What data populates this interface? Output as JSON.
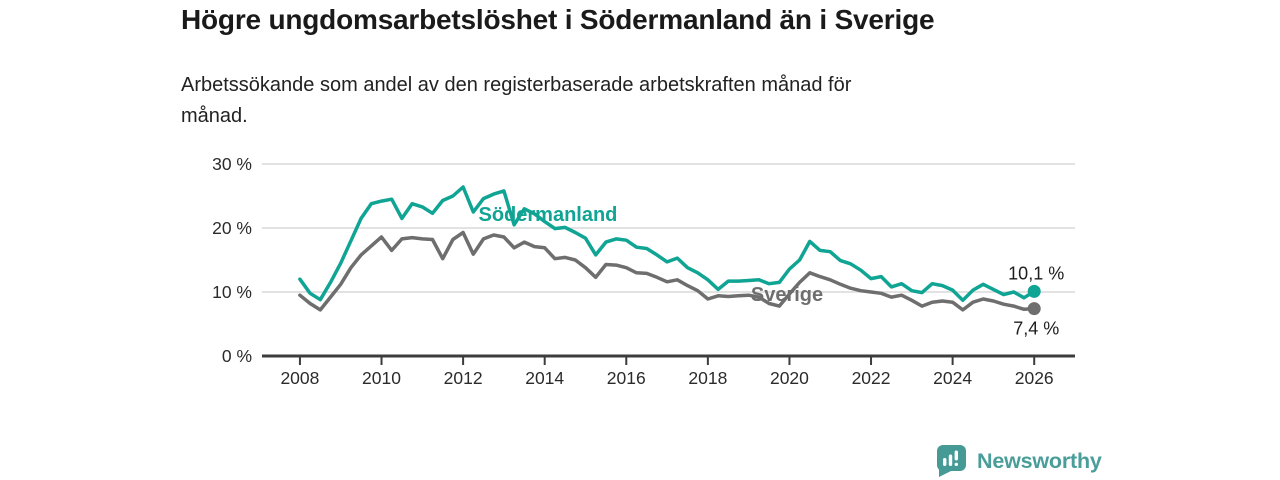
{
  "header": {
    "title": "Högre ungdomsarbetslöshet i Södermanland än i Sverige",
    "subtitle": "Arbetssökande som andel av den registerbaserade arbetskraften månad för månad."
  },
  "branding": {
    "name": "Newsworthy",
    "logo_icon": "bar-chart-speech-bubble-icon",
    "logo_color": "#469a96"
  },
  "chart_data": {
    "type": "line",
    "title": "Högre ungdomsarbetslöshet i Södermanland än i Sverige",
    "subtitle": "Arbetssökande som andel av den registerbaserade arbetskraften månad för månad.",
    "xlabel": "",
    "ylabel": "",
    "grid": "horizontal-gridlines-on",
    "legend_position": "inline-labels-on-lines",
    "xlim": [
      2007.07,
      2027.0
    ],
    "ylim": [
      0,
      30
    ],
    "x_ticks": [
      2008,
      2010,
      2012,
      2014,
      2016,
      2018,
      2020,
      2022,
      2024,
      2026
    ],
    "x_tick_labels": [
      "2008",
      "2010",
      "2012",
      "2014",
      "2016",
      "2018",
      "2020",
      "2022",
      "2024",
      "2026"
    ],
    "y_ticks": [
      0,
      10,
      20,
      30
    ],
    "y_tick_labels": [
      "0 %",
      "10 %",
      "20 %",
      "30 %"
    ],
    "x_start_year": 2008.0,
    "x_step_years": 0.25,
    "colors": {
      "gridline": "#d9d9d9",
      "axis": "#3c3c3c",
      "tick_text": "#2b2b2b",
      "annotation_text": "#1d1d1d"
    },
    "series": [
      {
        "name": "Södermanland",
        "color": "#0fa493",
        "end_value": 10.1,
        "end_value_label": "10,1 %",
        "inline_label": {
          "x": 2014.08,
          "y": 22.2
        },
        "values": [
          12.0,
          9.8,
          8.8,
          11.5,
          14.5,
          18.0,
          21.5,
          23.8,
          24.2,
          24.5,
          21.5,
          23.8,
          23.3,
          22.3,
          24.3,
          25.0,
          26.4,
          22.5,
          24.6,
          25.3,
          25.8,
          20.5,
          23.0,
          22.2,
          21.0,
          19.9,
          20.1,
          19.3,
          18.4,
          15.8,
          17.8,
          18.3,
          18.1,
          17.0,
          16.8,
          15.8,
          14.7,
          15.3,
          13.8,
          13.0,
          11.9,
          10.4,
          11.7,
          11.7,
          11.8,
          11.9,
          11.3,
          11.5,
          13.6,
          15.0,
          17.9,
          16.5,
          16.3,
          14.9,
          14.4,
          13.4,
          12.1,
          12.4,
          10.8,
          11.3,
          10.2,
          9.9,
          11.3,
          11.0,
          10.3,
          8.7,
          10.3,
          11.2,
          10.4,
          9.6,
          10.0,
          9.1,
          10.1
        ]
      },
      {
        "name": "Sverige",
        "color": "#6e6e6e",
        "end_value": 7.4,
        "end_value_label": "7,4 %",
        "inline_label": {
          "x": 2019.94,
          "y": 9.7
        },
        "values": [
          9.5,
          8.2,
          7.2,
          9.2,
          11.2,
          13.8,
          15.8,
          17.2,
          18.6,
          16.5,
          18.3,
          18.5,
          18.3,
          18.2,
          15.2,
          18.2,
          19.3,
          15.9,
          18.3,
          18.9,
          18.6,
          16.9,
          17.8,
          17.1,
          16.9,
          15.2,
          15.4,
          15.0,
          13.8,
          12.3,
          14.3,
          14.2,
          13.8,
          13.0,
          12.9,
          12.3,
          11.6,
          11.9,
          11.0,
          10.2,
          8.9,
          9.4,
          9.3,
          9.4,
          9.5,
          9.2,
          8.2,
          7.8,
          9.7,
          11.5,
          13.0,
          12.4,
          11.9,
          11.2,
          10.6,
          10.2,
          10.0,
          9.8,
          9.2,
          9.5,
          8.7,
          7.8,
          8.4,
          8.6,
          8.4,
          7.2,
          8.4,
          8.9,
          8.6,
          8.1,
          7.8,
          7.3,
          7.4
        ]
      }
    ]
  }
}
